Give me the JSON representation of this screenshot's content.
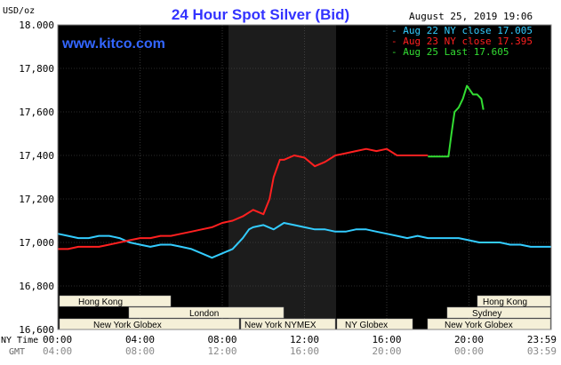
{
  "header": {
    "title": "24 Hour Spot Silver (Bid)",
    "units": "USD/oz",
    "timestamp": "August 25, 2019 19:06",
    "site": "www.kitco.com"
  },
  "legend": [
    {
      "label": "- Aug 22 NY close 17.005",
      "color": "#33ccff"
    },
    {
      "label": "- Aug 23 NY close 17.395",
      "color": "#ff2020"
    },
    {
      "label": "- Aug 25 Last 17.605",
      "color": "#33dd33"
    }
  ],
  "axis_labels": {
    "ny_time": "NY Time",
    "gmt": "GMT"
  },
  "markets": [
    {
      "label": "Hong Kong"
    },
    {
      "label": "London"
    },
    {
      "label": "New York Globex"
    },
    {
      "label": "New York NYMEX"
    },
    {
      "label": "NY Globex"
    },
    {
      "label": "Hong Kong"
    },
    {
      "label": "Sydney"
    },
    {
      "label": "New York Globex"
    }
  ],
  "colors": {
    "background": "#000000",
    "frame": "#ffffff",
    "title": "#3333ff",
    "highlight": "#1c1c1c",
    "market_box": "#f5f0d8"
  },
  "chart_data": {
    "type": "line",
    "title": "24 Hour Spot Silver (Bid)",
    "ylabel": "USD/oz",
    "ylim": [
      16.6,
      18.0
    ],
    "y_ticks": [
      "18.000",
      "17,800",
      "17,600",
      "17,400",
      "17,200",
      "17,000",
      "16,800",
      "16,600"
    ],
    "xlim": [
      0,
      24
    ],
    "x_ticks_ny": [
      "00:00",
      "04:00",
      "08:00",
      "12:00",
      "16:00",
      "20:00",
      "23:59"
    ],
    "x_ticks_gmt": [
      "04:00",
      "08:00",
      "12:00",
      "16:00",
      "20:00",
      "00:00",
      "03:59"
    ],
    "grid": true,
    "series": [
      {
        "name": "Aug 22 NY close 17.005",
        "color": "#33ccff",
        "x": [
          0,
          0.5,
          1,
          1.5,
          2,
          2.5,
          3,
          3.5,
          4,
          4.5,
          5,
          5.5,
          6,
          6.5,
          7,
          7.5,
          8,
          8.5,
          9,
          9.3,
          9.5,
          10,
          10.5,
          11,
          11.5,
          12,
          12.5,
          13,
          13.5,
          14,
          14.5,
          15,
          15.5,
          16,
          16.5,
          17,
          17.5,
          18,
          18.5,
          19,
          19.5,
          20,
          20.5,
          21,
          21.5,
          22,
          22.5,
          23,
          23.5,
          23.98
        ],
        "y": [
          17.04,
          17.03,
          17.02,
          17.02,
          17.03,
          17.03,
          17.02,
          17.0,
          16.99,
          16.98,
          16.99,
          16.99,
          16.98,
          16.97,
          16.95,
          16.93,
          16.95,
          16.97,
          17.02,
          17.06,
          17.07,
          17.08,
          17.06,
          17.09,
          17.08,
          17.07,
          17.06,
          17.06,
          17.05,
          17.05,
          17.06,
          17.06,
          17.05,
          17.04,
          17.03,
          17.02,
          17.03,
          17.02,
          17.02,
          17.02,
          17.02,
          17.01,
          17.0,
          17.0,
          17.0,
          16.99,
          16.99,
          16.98,
          16.98,
          16.98
        ]
      },
      {
        "name": "Aug 23 NY close 17.395",
        "color": "#ff2020",
        "x": [
          0,
          0.5,
          1,
          1.5,
          2,
          2.5,
          3,
          3.5,
          4,
          4.5,
          5,
          5.5,
          6,
          6.5,
          7,
          7.5,
          8,
          8.5,
          9,
          9.5,
          10,
          10.3,
          10.5,
          10.8,
          11,
          11.5,
          12,
          12.5,
          13,
          13.5,
          14,
          14.5,
          15,
          15.5,
          16,
          16.5,
          17,
          17.5,
          18
        ],
        "y": [
          16.97,
          16.97,
          16.98,
          16.98,
          16.98,
          16.99,
          17.0,
          17.01,
          17.02,
          17.02,
          17.03,
          17.03,
          17.04,
          17.05,
          17.06,
          17.07,
          17.09,
          17.1,
          17.12,
          17.15,
          17.13,
          17.2,
          17.3,
          17.38,
          17.38,
          17.4,
          17.39,
          17.35,
          17.37,
          17.4,
          17.41,
          17.42,
          17.43,
          17.42,
          17.43,
          17.4,
          17.4,
          17.4,
          17.4
        ]
      },
      {
        "name": "Aug 25 Last 17.605",
        "color": "#33dd33",
        "x": [
          18.0,
          18.6,
          19.0,
          19.15,
          19.3,
          19.5,
          19.7,
          19.9,
          20.2,
          20.4,
          20.6,
          20.7
        ],
        "y": [
          17.395,
          17.395,
          17.395,
          17.5,
          17.6,
          17.62,
          17.66,
          17.72,
          17.68,
          17.68,
          17.66,
          17.61
        ]
      }
    ]
  }
}
